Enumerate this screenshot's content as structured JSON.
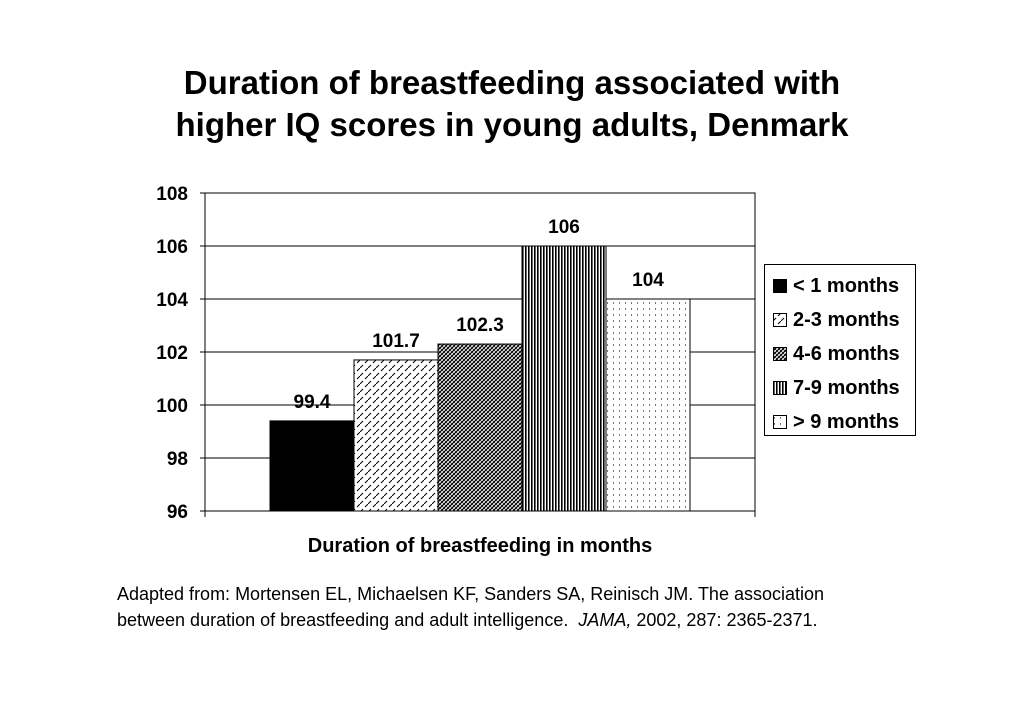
{
  "chart_data": {
    "type": "bar",
    "title": "Duration of breastfeeding associated with higher IQ scores in young adults, Denmark",
    "title_lines": [
      "Duration of breastfeeding associated with",
      "higher IQ scores in young adults, Denmark"
    ],
    "xlabel": "Duration of breastfeeding in months",
    "ylabel": "",
    "categories": [
      "< 1 months",
      "2-3 months",
      "4-6 months",
      "7-9 months",
      "> 9 months"
    ],
    "values": [
      99.4,
      101.7,
      102.3,
      106,
      104
    ],
    "data_labels": [
      "99.4",
      "101.7",
      "102.3",
      "106",
      "104"
    ],
    "ylim": [
      96,
      108
    ],
    "yticks": [
      "96",
      "98",
      "100",
      "102",
      "104",
      "106",
      "108"
    ],
    "grid": true,
    "legend_position": "right",
    "fills": [
      "solid-black",
      "dashed-diagonal",
      "crosshatch-diagonal",
      "vertical-stripes",
      "dotted"
    ]
  },
  "source": {
    "line1": "Adapted from: Mortensen EL, Michaelsen KF, Sanders SA, Reinisch JM. The association",
    "line2_prefix": "between duration of breastfeeding and adult intelligence.  ",
    "journal": "JAMA,",
    "line2_suffix": " 2002, 287: 2365-2371."
  }
}
